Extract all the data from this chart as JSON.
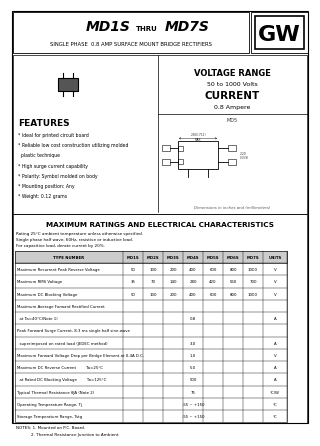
{
  "title_main": "MD1S",
  "title_thru": "THRU",
  "title_end": "MD7S",
  "subtitle": "SINGLE PHASE  0.8 AMP SURFACE MOUNT BRIDGE RECTIFIERS",
  "logo": "GW",
  "voltage_range_title": "VOLTAGE RANGE",
  "voltage_range_value": "50 to 1000 Volts",
  "current_title": "CURRENT",
  "current_value": "0.8 Ampere",
  "features_title": "FEATURES",
  "features": [
    "* Ideal for printed circuit board",
    "* Reliable low cost construction utilizing molded",
    "  plastic technique",
    "* High surge current capability",
    "* Polarity: Symbol molded on body",
    "* Mounting position: Any",
    "* Weight: 0.12 grams"
  ],
  "max_ratings_title": "MAXIMUM RATINGS AND ELECTRICAL CHARACTERISTICS",
  "max_ratings_notes": [
    "Rating 25°C ambient temperature unless otherwise specified.",
    "Single phase half wave, 60Hz, resistive or inductive load.",
    "For capacitive load, derate current by 20%."
  ],
  "table_headers": [
    "TYPE NUMBER",
    "MD1S",
    "MD2S",
    "MD3S",
    "MD4S",
    "MD5S",
    "MD6S",
    "MD7S",
    "UNITS"
  ],
  "table_rows": [
    [
      "Maximum Recurrent Peak Reverse Voltage",
      "50",
      "100",
      "200",
      "400",
      "600",
      "800",
      "1000",
      "V"
    ],
    [
      "Maximum RMS Voltage",
      "35",
      "70",
      "140",
      "280",
      "420",
      "560",
      "700",
      "V"
    ],
    [
      "Maximum DC Blocking Voltage",
      "50",
      "100",
      "200",
      "400",
      "600",
      "800",
      "1000",
      "V"
    ],
    [
      "Maximum Average Forward Rectified Current",
      "",
      "",
      "",
      "",
      "",
      "",
      "",
      ""
    ],
    [
      "  at Ta=40°C(Note 1)",
      "",
      "",
      "",
      "0.8",
      "",
      "",
      "",
      "A"
    ],
    [
      "Peak Forward Surge Current, 8.3 ms single half sine-wave",
      "",
      "",
      "",
      "",
      "",
      "",
      "",
      ""
    ],
    [
      "  superimposed on rated load (JEDEC method)",
      "",
      "",
      "",
      "3.0",
      "",
      "",
      "",
      "A"
    ],
    [
      "Maximum Forward Voltage Drop per Bridge Element at 0.4A D.C.",
      "",
      "",
      "",
      "1.0",
      "",
      "",
      "",
      "V"
    ],
    [
      "Maximum DC Reverse Current        Ta=25°C",
      "",
      "",
      "",
      "5.0",
      "",
      "",
      "",
      "A"
    ],
    [
      "  at Rated DC Blocking Voltage        Ta=125°C",
      "",
      "",
      "",
      "500",
      "",
      "",
      "",
      "A"
    ],
    [
      "Typical Thermal Resistance θJA (Note 2)",
      "",
      "",
      "",
      "75",
      "",
      "",
      "",
      "°C/W"
    ],
    [
      "Operating Temperature Range, Tj",
      "",
      "",
      "",
      "-55 ~ +150",
      "",
      "",
      "",
      "°C"
    ],
    [
      "Storage Temperature Range, Tstg",
      "",
      "",
      "",
      "-55 ~ +150",
      "",
      "",
      "",
      "°C"
    ]
  ],
  "notes": [
    "NOTES: 1. Mounted on P.C. Board.",
    "            2. Thermal Resistance Junction to Ambient."
  ],
  "bg_color": "#ffffff",
  "text_color": "#000000"
}
